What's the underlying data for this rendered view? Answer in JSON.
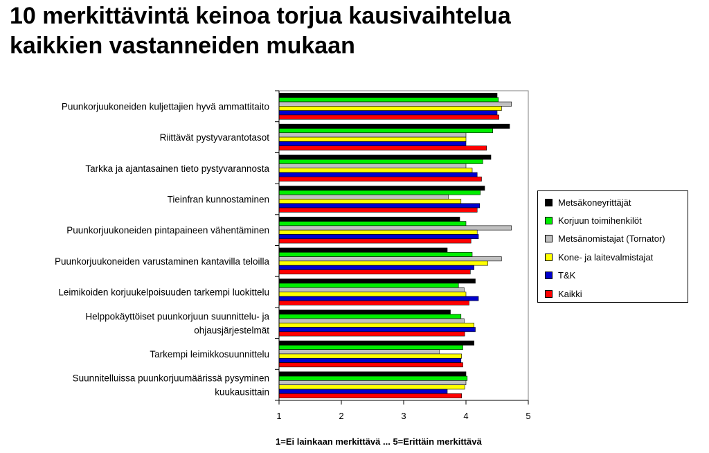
{
  "title_lines": [
    "10 merkittävintä keinoa torjua kausivaihtelua",
    "kaikkien vastanneiden mukaan"
  ],
  "chart_data": {
    "type": "bar",
    "orientation": "horizontal",
    "title": "10 merkittävintä keinoa torjua kausivaihtelua kaikkien vastanneiden mukaan",
    "xlabel": "1=Ei lainkaan merkittävä  ...  5=Erittäin merkittävä",
    "ylabel": "",
    "xlim": [
      1,
      5
    ],
    "xticks": [
      1,
      2,
      3,
      4,
      5
    ],
    "grid": false,
    "legend_position": "right",
    "categories": [
      "Puunkorjuukoneiden kuljettajien hyvä ammattitaito",
      "Riittävät pystyvarantotasot",
      "Tarkka ja ajantasainen tieto pystyvarannosta",
      "Tieinfran kunnostaminen",
      "Puunkorjuukoneiden pintapaineen vähentäminen",
      "Puunkorjuukoneiden varustaminen kantavilla teloilla",
      "Leimikoiden korjuukelpoisuuden tarkempi luokittelu",
      "Helppokäyttöiset puunkorjuun suunnittelu- ja ohjausjärjestelmät",
      "Tarkempi leimikkosuunnittelu",
      "Suunnitelluissa puunkorjuumäärissä pysyminen kuukausittain"
    ],
    "category_label_lines": [
      [
        "Puunkorjuukoneiden kuljettajien hyvä ammattitaito"
      ],
      [
        "Riittävät pystyvarantotasot"
      ],
      [
        "Tarkka ja ajantasainen tieto pystyvarannosta"
      ],
      [
        "Tieinfran kunnostaminen"
      ],
      [
        "Puunkorjuukoneiden pintapaineen vähentäminen"
      ],
      [
        "Puunkorjuukoneiden varustaminen kantavilla teloilla"
      ],
      [
        "Leimikoiden korjuukelpoisuuden tarkempi luokittelu"
      ],
      [
        "Helppokäyttöiset puunkorjuun suunnittelu- ja",
        "ohjausjärjestelmät"
      ],
      [
        "Tarkempi leimikkosuunnittelu"
      ],
      [
        "Suunnitelluissa puunkorjuumäärissä pysyminen",
        "kuukausittain"
      ]
    ],
    "series": [
      {
        "name": "Metsäkoneyrittäjät",
        "color": "#000000",
        "values": [
          4.5,
          4.7,
          4.4,
          4.3,
          3.9,
          3.7,
          4.15,
          3.75,
          4.13,
          4.0
        ]
      },
      {
        "name": "Korjuun toimihenkilöt",
        "color": "#00ee00",
        "values": [
          4.52,
          4.43,
          4.27,
          4.23,
          4.0,
          4.1,
          3.88,
          3.92,
          3.95,
          4.02
        ]
      },
      {
        "name": "Metsänomistajat (Tornator)",
        "color": "#c0c0c0",
        "values": [
          4.73,
          4.0,
          4.0,
          3.72,
          4.73,
          4.57,
          3.97,
          3.97,
          3.57,
          4.0
        ]
      },
      {
        "name": "Kone- ja laitevalmistajat",
        "color": "#ffff00",
        "values": [
          4.57,
          4.0,
          4.1,
          3.92,
          4.18,
          4.35,
          4.0,
          4.13,
          3.93,
          3.98
        ]
      },
      {
        "name": "T&K",
        "color": "#0000cc",
        "values": [
          4.5,
          4.0,
          4.18,
          4.22,
          4.2,
          4.13,
          4.2,
          4.15,
          3.92,
          3.7
        ]
      },
      {
        "name": "Kaikki",
        "color": "#ff0000",
        "values": [
          4.53,
          4.33,
          4.25,
          4.18,
          4.08,
          4.07,
          4.05,
          3.98,
          3.95,
          3.93
        ]
      }
    ]
  }
}
